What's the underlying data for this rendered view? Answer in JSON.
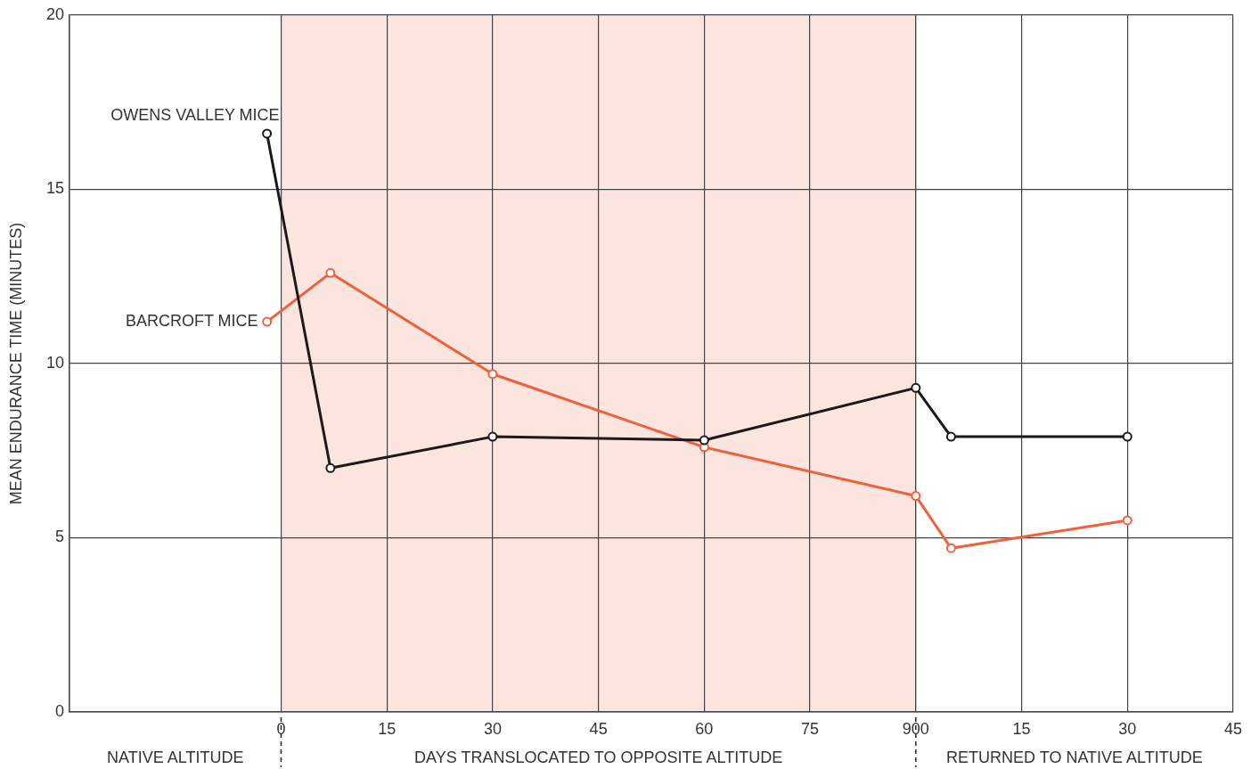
{
  "chart_data": {
    "type": "line",
    "ylabel": "MEAN ENDURANCE TIME (MINUTES)",
    "xlim": [
      -30,
      135
    ],
    "xticks": [
      0,
      15,
      30,
      45,
      60,
      75,
      90
    ],
    "x2lim": [
      -120,
      45
    ],
    "x2ticks": [
      0,
      15,
      30,
      45
    ],
    "ylim": [
      0,
      20
    ],
    "yticks": [
      0,
      5,
      10,
      15,
      20
    ],
    "grid": true,
    "legend": false,
    "marker": "circle",
    "line_style": "solid",
    "bands": [
      {
        "axis": "x",
        "from": 0,
        "to": 90,
        "label": null,
        "color": "#fce4df"
      }
    ],
    "annotations": [
      "NATIVE ALTITUDE",
      "DAYS TRANSLOCATED TO OPPOSITE ALTITUDE",
      "RETURNED TO NATIVE ALTITUDE"
    ],
    "series": [
      {
        "name": "OWENS VALLEY MICE",
        "color": "#1a1a1a",
        "x": [
          -2,
          7,
          30,
          60,
          90,
          95,
          120
        ],
        "values": [
          16.6,
          7.0,
          7.9,
          7.8,
          9.3,
          7.9,
          7.9
        ]
      },
      {
        "name": "BARCROFT MICE",
        "color": "#f0603a",
        "x": [
          -2,
          7,
          30,
          60,
          90,
          95,
          120
        ],
        "values": [
          11.2,
          12.6,
          9.7,
          7.6,
          6.2,
          4.7,
          5.5
        ]
      }
    ]
  }
}
